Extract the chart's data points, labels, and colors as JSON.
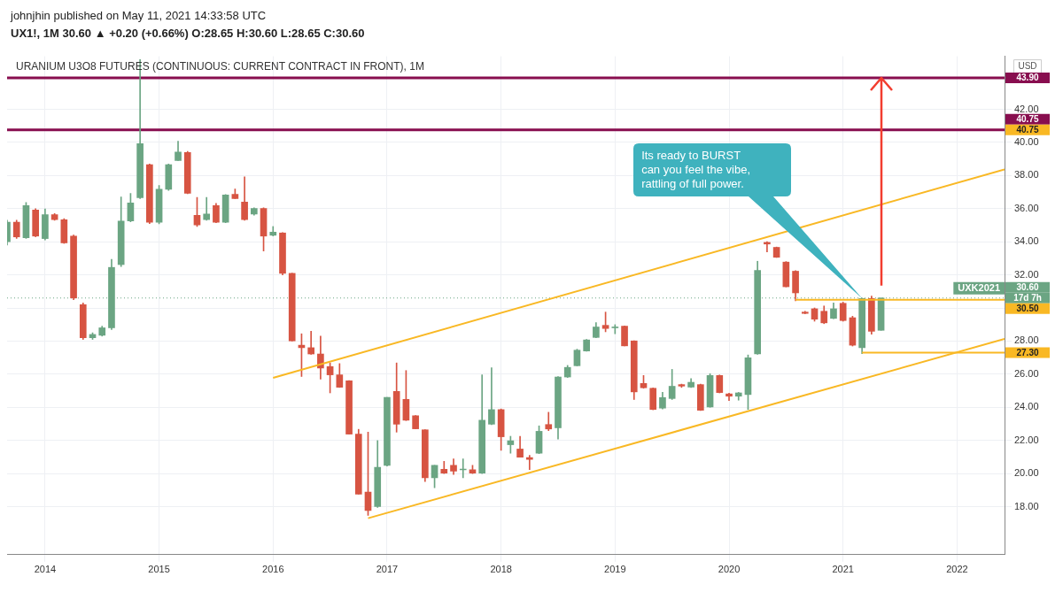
{
  "chart_data": {
    "type": "candlestick",
    "title": "URANIUM U3O8 FUTURES (CONTINUOUS: CURRENT CONTRACT IN FRONT), 1M",
    "subtitle": "UX1!, 1M  30.60 ▲ +0.20 (+0.66%)  O:28.65  H:30.60  L:28.65  C:30.60",
    "ylabel": "USD",
    "x": [
      "2013-09",
      "2013-10",
      "2013-11",
      "2013-12",
      "2014-01",
      "2014-02",
      "2014-03",
      "2014-04",
      "2014-05",
      "2014-06",
      "2014-07",
      "2014-08",
      "2014-09",
      "2014-10",
      "2014-11",
      "2014-12",
      "2015-01",
      "2015-02",
      "2015-03",
      "2015-04",
      "2015-05",
      "2015-06",
      "2015-07",
      "2015-08",
      "2015-09",
      "2015-10",
      "2015-11",
      "2015-12",
      "2016-01",
      "2016-02",
      "2016-03",
      "2016-04",
      "2016-05",
      "2016-06",
      "2016-07",
      "2016-08",
      "2016-09",
      "2016-10",
      "2016-11",
      "2016-12",
      "2017-01",
      "2017-02",
      "2017-03",
      "2017-04",
      "2017-05",
      "2017-06",
      "2017-07",
      "2017-08",
      "2017-09",
      "2017-10",
      "2017-11",
      "2017-12",
      "2018-01",
      "2018-02",
      "2018-03",
      "2018-04",
      "2018-05",
      "2018-06",
      "2018-07",
      "2018-08",
      "2018-09",
      "2018-10",
      "2018-11",
      "2018-12",
      "2019-01",
      "2019-02",
      "2019-03",
      "2019-04",
      "2019-05",
      "2019-06",
      "2019-07",
      "2019-08",
      "2019-09",
      "2019-10",
      "2019-11",
      "2019-12",
      "2020-01",
      "2020-02",
      "2020-03",
      "2020-04",
      "2020-05",
      "2020-06",
      "2020-07",
      "2020-08",
      "2020-09",
      "2020-10",
      "2020-11",
      "2020-12",
      "2021-01",
      "2021-02",
      "2021-03",
      "2021-04",
      "2021-05"
    ],
    "ohlc": [
      [
        34.0,
        35.3,
        33.8,
        35.18
      ],
      [
        35.18,
        35.3,
        34.2,
        34.29
      ],
      [
        34.24,
        36.37,
        34.2,
        36.18
      ],
      [
        35.91,
        36.0,
        34.3,
        34.34
      ],
      [
        34.19,
        35.98,
        34.1,
        35.64
      ],
      [
        35.64,
        35.7,
        35.3,
        35.33
      ],
      [
        35.33,
        35.4,
        33.9,
        33.93
      ],
      [
        34.34,
        34.4,
        30.5,
        30.6
      ],
      [
        30.2,
        30.3,
        28.1,
        28.2
      ],
      [
        28.2,
        28.5,
        28.1,
        28.4
      ],
      [
        28.35,
        28.9,
        28.3,
        28.8
      ],
      [
        28.8,
        32.94,
        28.7,
        32.45
      ],
      [
        32.62,
        36.7,
        32.5,
        35.25
      ],
      [
        35.25,
        36.92,
        35.2,
        36.34
      ],
      [
        36.66,
        45.0,
        36.6,
        39.92
      ],
      [
        38.66,
        38.7,
        35.1,
        35.18
      ],
      [
        35.18,
        37.4,
        35.08,
        37.17
      ],
      [
        37.17,
        38.7,
        37.1,
        38.66
      ],
      [
        38.9,
        40.07,
        38.9,
        39.41
      ],
      [
        39.39,
        39.45,
        36.9,
        36.92
      ],
      [
        35.59,
        36.68,
        34.92,
        35.02
      ],
      [
        35.33,
        36.68,
        35.3,
        35.67
      ],
      [
        36.18,
        36.32,
        35.15,
        35.18
      ],
      [
        35.18,
        36.85,
        35.15,
        36.82
      ],
      [
        36.87,
        37.19,
        36.6,
        36.61
      ],
      [
        36.39,
        37.92,
        35.3,
        35.33
      ],
      [
        35.67,
        36.05,
        35.6,
        36.01
      ],
      [
        36.01,
        36.05,
        33.44,
        34.34
      ],
      [
        34.39,
        34.92,
        34.35,
        34.58
      ],
      [
        34.53,
        34.55,
        32.0,
        32.09
      ],
      [
        32.09,
        32.1,
        28.0,
        28.01
      ],
      [
        27.75,
        28.44,
        25.86,
        27.6
      ],
      [
        27.6,
        28.59,
        27.2,
        27.22
      ],
      [
        27.22,
        28.3,
        25.7,
        26.37
      ],
      [
        26.46,
        26.68,
        24.87,
        25.96
      ],
      [
        25.96,
        26.64,
        25.2,
        25.21
      ],
      [
        25.6,
        25.62,
        22.38,
        22.38
      ],
      [
        22.38,
        22.67,
        18.75,
        18.75
      ],
      [
        18.88,
        22.5,
        17.47,
        17.76
      ],
      [
        18.01,
        21.99,
        17.95,
        20.37
      ],
      [
        20.49,
        24.6,
        20.45,
        24.6
      ],
      [
        24.96,
        26.68,
        22.5,
        22.98
      ],
      [
        24.48,
        26.22,
        23.2,
        23.22
      ],
      [
        23.49,
        23.5,
        22.7,
        22.7
      ],
      [
        22.64,
        22.65,
        19.51,
        19.74
      ],
      [
        19.74,
        20.5,
        19.14,
        20.49
      ],
      [
        20.25,
        20.74,
        20.0,
        20.03
      ],
      [
        20.49,
        20.88,
        19.94,
        20.15
      ],
      [
        20.22,
        20.88,
        19.74,
        20.24
      ],
      [
        20.23,
        20.49,
        20.0,
        20.03
      ],
      [
        20.03,
        25.96,
        20.0,
        23.22
      ],
      [
        22.98,
        26.39,
        22.95,
        23.86
      ],
      [
        23.86,
        23.9,
        21.4,
        22.22
      ],
      [
        21.74,
        22.25,
        21.22,
        21.98
      ],
      [
        21.48,
        22.25,
        20.99,
        20.99
      ],
      [
        20.97,
        21.1,
        20.24,
        20.85
      ],
      [
        21.22,
        22.88,
        21.2,
        22.55
      ],
      [
        22.96,
        23.7,
        22.59,
        22.69
      ],
      [
        22.76,
        25.85,
        22.08,
        25.83
      ],
      [
        25.83,
        26.53,
        25.8,
        26.41
      ],
      [
        26.51,
        27.51,
        26.5,
        27.45
      ],
      [
        27.4,
        28.1,
        27.38,
        28.07
      ],
      [
        28.22,
        29.12,
        28.2,
        28.85
      ],
      [
        28.95,
        29.75,
        28.56,
        28.76
      ],
      [
        28.8,
        28.99,
        28.44,
        28.85
      ],
      [
        28.9,
        28.92,
        27.7,
        27.71
      ],
      [
        28.01,
        28.02,
        24.47,
        24.93
      ],
      [
        25.44,
        25.92,
        25.15,
        25.18
      ],
      [
        25.15,
        25.17,
        23.85,
        23.87
      ],
      [
        23.95,
        24.91,
        23.9,
        24.59
      ],
      [
        24.53,
        26.29,
        24.47,
        25.27
      ],
      [
        25.37,
        25.4,
        25.2,
        25.28
      ],
      [
        25.22,
        25.73,
        25.2,
        25.51
      ],
      [
        25.37,
        25.4,
        23.8,
        23.82
      ],
      [
        24.02,
        26.03,
        24.0,
        25.92
      ],
      [
        25.92,
        25.95,
        24.87,
        24.89
      ],
      [
        24.81,
        24.85,
        24.4,
        24.67
      ],
      [
        24.67,
        24.9,
        24.43,
        24.87
      ],
      [
        24.77,
        27.16,
        23.87,
        26.99
      ],
      [
        27.23,
        32.82,
        27.2,
        32.27
      ],
      [
        33.96,
        34.0,
        33.38,
        33.86
      ],
      [
        33.66,
        33.68,
        33.05,
        33.06
      ],
      [
        32.77,
        32.8,
        31.27,
        31.28
      ],
      [
        32.22,
        32.25,
        30.43,
        30.91
      ],
      [
        29.75,
        29.8,
        29.65,
        29.67
      ],
      [
        29.95,
        30.0,
        29.2,
        29.32
      ],
      [
        29.8,
        30.12,
        29.05,
        29.1
      ],
      [
        29.37,
        30.3,
        29.35,
        29.95
      ],
      [
        30.28,
        30.35,
        29.2,
        29.24
      ],
      [
        29.41,
        29.5,
        27.7,
        27.75
      ],
      [
        27.6,
        30.6,
        27.24,
        30.57
      ],
      [
        30.57,
        30.72,
        28.42,
        28.59
      ],
      [
        28.65,
        30.6,
        28.65,
        30.6
      ]
    ],
    "series": [
      {
        "type": "line",
        "color": "#f9b824",
        "x": [
          "2016-01",
          "2022-06"
        ],
        "values": [
          25.78,
          38.37
        ]
      },
      {
        "type": "line",
        "color": "#f9b824",
        "x": [
          "2016-11",
          "2022-06"
        ],
        "values": [
          17.3,
          28.13
        ]
      },
      {
        "type": "line",
        "color": "#f9b824",
        "x": [
          "2020-08",
          "2022-06"
        ],
        "values": [
          30.5,
          30.5
        ]
      },
      {
        "type": "line",
        "color": "#f9b824",
        "x": [
          "2021-03",
          "2022-06"
        ],
        "values": [
          27.3,
          27.3
        ]
      }
    ],
    "ref_lines": [
      {
        "axis": "y",
        "value": 43.9,
        "label": "43.90",
        "color": "#880e4f"
      },
      {
        "axis": "y",
        "value": 40.75,
        "label": "40.75",
        "color": "#880e4f"
      },
      {
        "axis": "y",
        "value": 30.6,
        "label": "30.60",
        "color": "#6ba583",
        "line_style": "dotted"
      }
    ],
    "annotations": [
      "johnjhin published on May 11, 2021 14:33:58 UTC",
      "Its ready to BURST\ncan you feel the vibe,\nrattling of full power.",
      {
        "text": "UXK2021",
        "x": "2022-06",
        "y": 30.6
      },
      {
        "text": "17d 7h",
        "x": "2022-06",
        "y": 30.6
      },
      {
        "text": "40.75",
        "x": "2022-06",
        "y": 40.75
      },
      {
        "text": "30.50",
        "x": "2022-06",
        "y": 30.5
      },
      {
        "text": "27.30",
        "x": "2022-06",
        "y": 27.3
      }
    ],
    "xlim": [
      "2013-09",
      "2022-06"
    ],
    "xticks": [
      "2014",
      "2015",
      "2016",
      "2017",
      "2018",
      "2019",
      "2020",
      "2021",
      "2022"
    ],
    "ylim": [
      15.1,
      45.2
    ],
    "yticks": [
      {
        "value": 18,
        "label": "18.00"
      },
      {
        "value": 20,
        "label": "20.00"
      },
      {
        "value": 22,
        "label": "22.00"
      },
      {
        "value": 24,
        "label": "24.00"
      },
      {
        "value": 26,
        "label": "26.00"
      },
      {
        "value": 28,
        "label": "28.00"
      },
      {
        "value": 30,
        "label": null
      },
      {
        "value": 32,
        "label": "32.00"
      },
      {
        "value": 34,
        "label": "34.00"
      },
      {
        "value": 36,
        "label": "36.00"
      },
      {
        "value": 38,
        "label": "38.00"
      },
      {
        "value": 40,
        "label": "40.00"
      },
      {
        "value": 42,
        "label": "42.00"
      }
    ],
    "grid": true
  }
}
